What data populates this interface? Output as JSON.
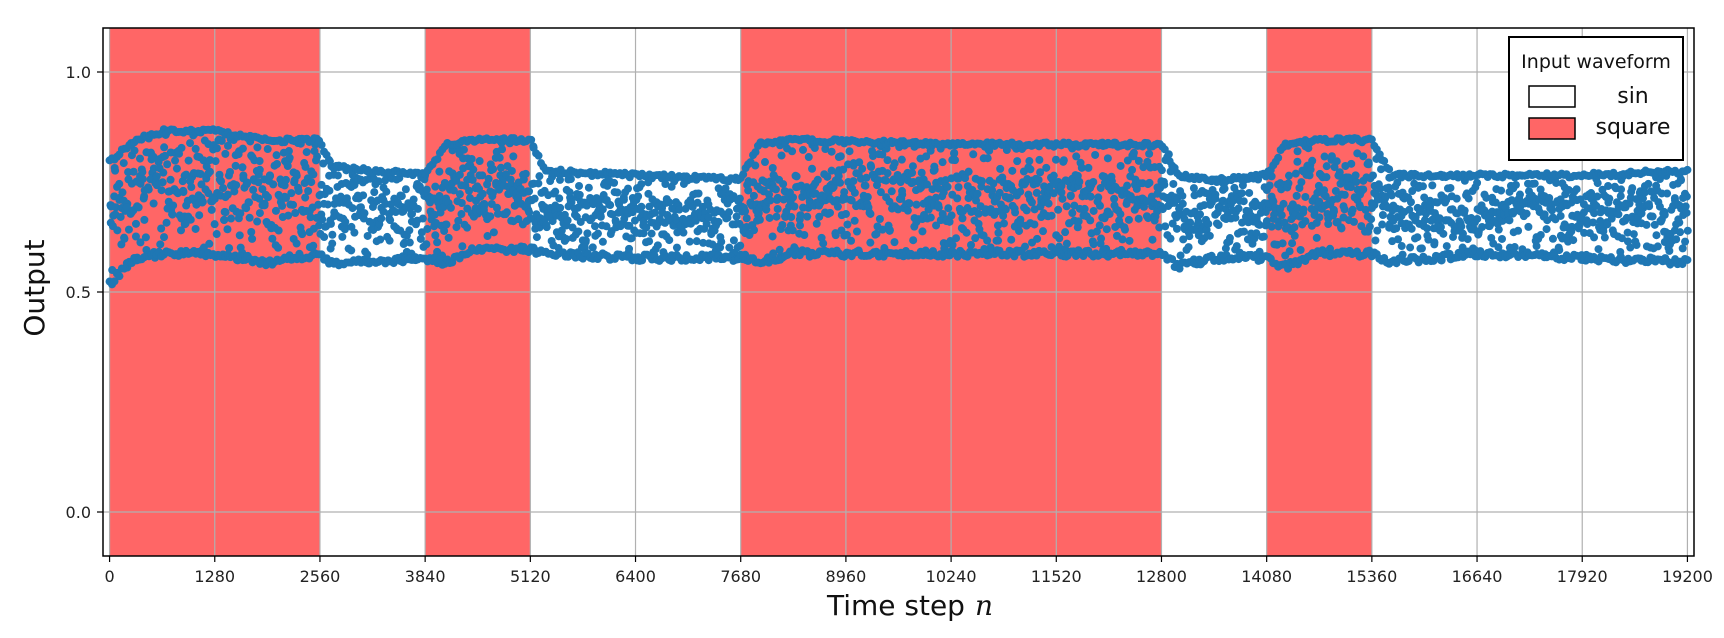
{
  "chart_data": {
    "type": "scatter",
    "xlabel": "Time step",
    "xlabel_var": "n",
    "ylabel": "Output",
    "xlim": [
      -80,
      19280
    ],
    "ylim": [
      -0.1,
      1.1
    ],
    "xticks": [
      0,
      1280,
      2560,
      3840,
      5120,
      6400,
      7680,
      8960,
      10240,
      11520,
      12800,
      14080,
      15360,
      16640,
      17920,
      19200
    ],
    "yticks": [
      0.0,
      0.5,
      1.0
    ],
    "xtick_labels": [
      "0",
      "1280",
      "2560",
      "3840",
      "5120",
      "6400",
      "7680",
      "8960",
      "10240",
      "11520",
      "12800",
      "14080",
      "15360",
      "16640",
      "17920",
      "19200"
    ],
    "ytick_labels": [
      "0.0",
      "0.5",
      "1.0"
    ],
    "grid": true,
    "legend": {
      "title": "Input waveform",
      "placement": "top-right",
      "entries": [
        {
          "label": "sin",
          "color": "#ffffff"
        },
        {
          "label": "square",
          "color": "#ff6666"
        }
      ]
    },
    "background_regions": [
      {
        "waveform": "square",
        "x_start": 0,
        "x_end": 2560
      },
      {
        "waveform": "sin",
        "x_start": 2560,
        "x_end": 3840
      },
      {
        "waveform": "square",
        "x_start": 3840,
        "x_end": 5120
      },
      {
        "waveform": "sin",
        "x_start": 5120,
        "x_end": 7680
      },
      {
        "waveform": "square",
        "x_start": 7680,
        "x_end": 12800
      },
      {
        "waveform": "sin",
        "x_start": 12800,
        "x_end": 14080
      },
      {
        "waveform": "square",
        "x_start": 14080,
        "x_end": 15360
      },
      {
        "waveform": "sin",
        "x_start": 15360,
        "x_end": 19200
      }
    ],
    "series": [
      {
        "color": "#1f77b4",
        "envelope": [
          {
            "x": 0,
            "low": 0.51,
            "high": 0.8
          },
          {
            "x": 300,
            "low": 0.57,
            "high": 0.85
          },
          {
            "x": 640,
            "low": 0.58,
            "high": 0.87
          },
          {
            "x": 1280,
            "low": 0.58,
            "high": 0.87
          },
          {
            "x": 1920,
            "low": 0.56,
            "high": 0.85
          },
          {
            "x": 2560,
            "low": 0.58,
            "high": 0.85
          },
          {
            "x": 2700,
            "low": 0.56,
            "high": 0.79
          },
          {
            "x": 3200,
            "low": 0.56,
            "high": 0.78
          },
          {
            "x": 3840,
            "low": 0.57,
            "high": 0.77
          },
          {
            "x": 4100,
            "low": 0.56,
            "high": 0.84
          },
          {
            "x": 4480,
            "low": 0.59,
            "high": 0.85
          },
          {
            "x": 5120,
            "low": 0.59,
            "high": 0.85
          },
          {
            "x": 5300,
            "low": 0.58,
            "high": 0.78
          },
          {
            "x": 6400,
            "low": 0.57,
            "high": 0.77
          },
          {
            "x": 7680,
            "low": 0.57,
            "high": 0.76
          },
          {
            "x": 7900,
            "low": 0.56,
            "high": 0.84
          },
          {
            "x": 8320,
            "low": 0.58,
            "high": 0.85
          },
          {
            "x": 10240,
            "low": 0.58,
            "high": 0.84
          },
          {
            "x": 12800,
            "low": 0.58,
            "high": 0.84
          },
          {
            "x": 13000,
            "low": 0.55,
            "high": 0.77
          },
          {
            "x": 13440,
            "low": 0.57,
            "high": 0.76
          },
          {
            "x": 14080,
            "low": 0.57,
            "high": 0.77
          },
          {
            "x": 14300,
            "low": 0.55,
            "high": 0.84
          },
          {
            "x": 14720,
            "low": 0.58,
            "high": 0.85
          },
          {
            "x": 15360,
            "low": 0.58,
            "high": 0.85
          },
          {
            "x": 15600,
            "low": 0.56,
            "high": 0.77
          },
          {
            "x": 16640,
            "low": 0.58,
            "high": 0.77
          },
          {
            "x": 17920,
            "low": 0.57,
            "high": 0.77
          },
          {
            "x": 19200,
            "low": 0.56,
            "high": 0.78
          }
        ]
      }
    ]
  }
}
